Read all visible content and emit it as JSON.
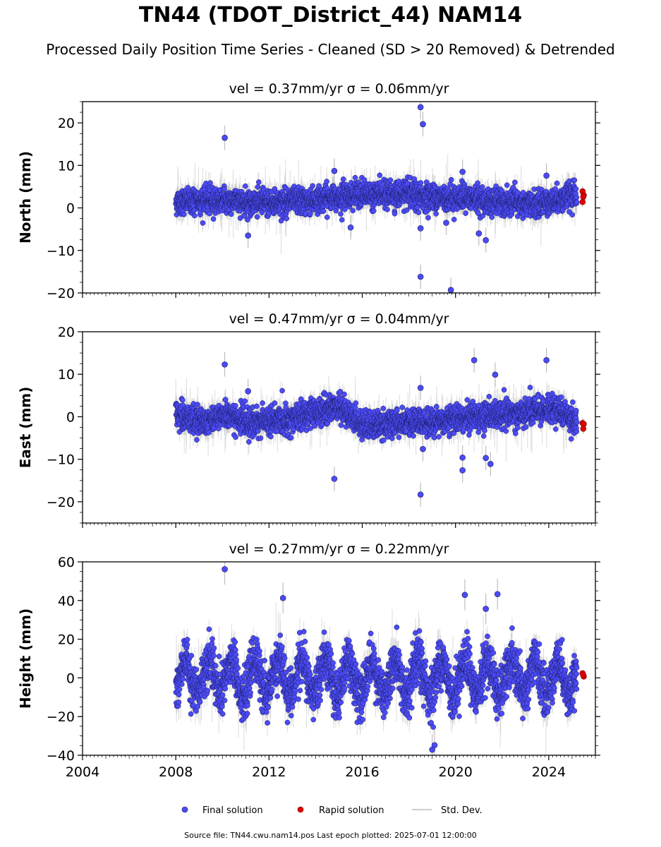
{
  "title": "TN44 (TDOT_District_44) NAM14",
  "subtitle": "Processed Daily Position Time Series - Cleaned (SD > 20 Removed) & Detrended",
  "footer": "Source file: TN44.cwu.nam14.pos  Last epoch plotted: 2025-07-01 12:00:00",
  "colors": {
    "final": "#4b4bf5",
    "rapid": "#e00000",
    "stddev": "#bdbdbd",
    "outline": "#1a1a5e"
  },
  "chart_data": [
    {
      "type": "scatter",
      "panel": "north",
      "title": "vel = 0.37mm/yr   σ = 0.06mm/yr",
      "ylabel": "North (mm)",
      "xlim": [
        2004,
        2026
      ],
      "ylim": [
        -20,
        25
      ],
      "yticks": [
        -20,
        -10,
        0,
        10,
        20
      ],
      "yticklabels": [
        "−20",
        "−10",
        "0",
        "10",
        "20"
      ],
      "xticks": [
        2004,
        2008,
        2012,
        2016,
        2020,
        2024
      ],
      "show_xticklabels": false,
      "grid": false,
      "trend": [
        [
          2008.0,
          1.5
        ],
        [
          2010.0,
          1.8
        ],
        [
          2012.0,
          1.2
        ],
        [
          2014.0,
          1.8
        ],
        [
          2015.0,
          2.8
        ],
        [
          2017.0,
          3.3
        ],
        [
          2019.0,
          2.6
        ],
        [
          2020.5,
          2.2
        ],
        [
          2022.0,
          1.2
        ],
        [
          2023.5,
          0.8
        ],
        [
          2025.0,
          2.8
        ]
      ],
      "noise": 1.5,
      "err": 1.8,
      "series": [
        {
          "name": "Final solution",
          "x": [
            2010.1,
            2014.8,
            2018.5,
            2018.6,
            2018.5,
            2018.5,
            2019.8,
            2021.3,
            2011.1,
            2019.6,
            2020.3,
            2021.0,
            2023.9,
            2015.5
          ],
          "y": [
            16.5,
            8.7,
            23.7,
            19.7,
            -16.2,
            -4.8,
            -19.3,
            -7.6,
            -6.5,
            -3.5,
            8.5,
            -6.0,
            7.6,
            -4.6
          ]
        },
        {
          "name": "Rapid solution",
          "x": [
            2025.45,
            2025.5,
            2025.45,
            2025.48
          ],
          "y": [
            3.9,
            3.0,
            1.4,
            2.6
          ]
        }
      ]
    },
    {
      "type": "scatter",
      "panel": "east",
      "title": "vel = 0.47mm/yr   σ = 0.04mm/yr",
      "ylabel": "East (mm)",
      "xlim": [
        2004,
        2026
      ],
      "ylim": [
        -25,
        20
      ],
      "yticks": [
        -20,
        -10,
        0,
        10,
        20
      ],
      "yticklabels": [
        "−20",
        "−10",
        "0",
        "10",
        "20"
      ],
      "xticks": [
        2004,
        2008,
        2012,
        2016,
        2020,
        2024
      ],
      "show_xticklabels": false,
      "grid": false,
      "trend": [
        [
          2008.0,
          0.5
        ],
        [
          2009.0,
          -1.0
        ],
        [
          2010.2,
          0.5
        ],
        [
          2011.0,
          -1.5
        ],
        [
          2013.0,
          -0.5
        ],
        [
          2015.0,
          2.5
        ],
        [
          2016.0,
          -2.0
        ],
        [
          2018.5,
          -1.5
        ],
        [
          2020.5,
          0.0
        ],
        [
          2023.0,
          1.0
        ],
        [
          2024.3,
          2.0
        ],
        [
          2025.0,
          -0.5
        ]
      ],
      "noise": 1.6,
      "err": 1.8,
      "series": [
        {
          "name": "Final solution",
          "x": [
            2010.1,
            2011.1,
            2014.8,
            2018.5,
            2018.5,
            2020.8,
            2021.7,
            2023.9,
            2020.3,
            2020.3,
            2021.3,
            2021.5,
            2018.6
          ],
          "y": [
            12.3,
            6.0,
            -14.6,
            -18.3,
            6.8,
            13.3,
            9.9,
            13.3,
            -12.6,
            -9.6,
            -9.7,
            -11.1,
            -7.6
          ]
        },
        {
          "name": "Rapid solution",
          "x": [
            2025.45,
            2025.5,
            2025.48
          ],
          "y": [
            -1.5,
            -1.7,
            -2.8
          ]
        }
      ]
    },
    {
      "type": "scatter",
      "panel": "height",
      "title": "vel = 0.27mm/yr   σ = 0.22mm/yr",
      "ylabel": "Height (mm)",
      "xlim": [
        2004,
        2026
      ],
      "ylim": [
        -40,
        60
      ],
      "yticks": [
        -40,
        -20,
        0,
        20,
        40,
        60
      ],
      "yticklabels": [
        "−40",
        "−20",
        "0",
        "20",
        "40",
        "60"
      ],
      "xticks": [
        2004,
        2008,
        2012,
        2016,
        2020,
        2024
      ],
      "xticklabels": [
        "2004",
        "2008",
        "2012",
        "2016",
        "2020",
        "2024"
      ],
      "show_xticklabels": true,
      "grid": false,
      "trend": [
        [
          2008.0,
          0.0
        ],
        [
          2025.0,
          0.0
        ]
      ],
      "seasonal": 9,
      "noise": 6,
      "err": 5,
      "series": [
        {
          "name": "Final solution",
          "x": [
            2010.1,
            2012.6,
            2020.4,
            2021.8,
            2021.3,
            2019.0,
            2019.1
          ],
          "y": [
            56.2,
            41.3,
            42.9,
            43.3,
            35.7,
            -37.1,
            -34.8
          ]
        },
        {
          "name": "Rapid solution",
          "x": [
            2025.45,
            2025.5,
            2025.48
          ],
          "y": [
            2.4,
            0.7,
            1.6
          ]
        }
      ]
    }
  ],
  "legend": {
    "placement": "bottom-center",
    "entries": [
      {
        "label": "Final solution",
        "kind": "marker",
        "color": "#4b4bf5"
      },
      {
        "label": "Rapid solution",
        "kind": "marker",
        "color": "#e00000"
      },
      {
        "label": "Std. Dev.",
        "kind": "line",
        "color": "#bdbdbd"
      }
    ]
  }
}
